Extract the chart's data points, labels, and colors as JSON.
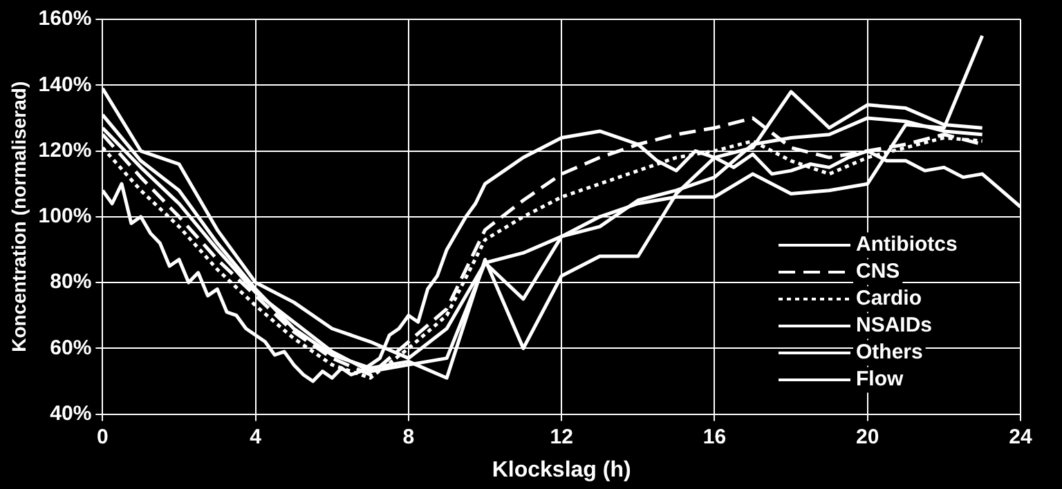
{
  "chart_data": {
    "type": "line",
    "xlabel": "Klockslag (h)",
    "ylabel": "Koncentration (normaliserad)",
    "x": [
      0,
      1,
      2,
      3,
      4,
      5,
      6,
      7,
      8,
      9,
      10,
      11,
      12,
      13,
      14,
      15,
      16,
      17,
      18,
      19,
      20,
      21,
      22,
      23
    ],
    "xlim": [
      0,
      24
    ],
    "xticks": [
      0,
      4,
      8,
      12,
      16,
      20,
      24
    ],
    "ylim": [
      40,
      160
    ],
    "yticks": [
      {
        "value": 40,
        "label": "40%"
      },
      {
        "value": 60,
        "label": "60%"
      },
      {
        "value": 80,
        "label": "80%"
      },
      {
        "value": 100,
        "label": "100%"
      },
      {
        "value": 120,
        "label": "120%"
      },
      {
        "value": 140,
        "label": "140%"
      },
      {
        "value": 160,
        "label": "160%"
      }
    ],
    "grid": true,
    "legend": "bottom right",
    "marker": "none",
    "series": [
      {
        "name": "Antibiotcs",
        "color": "#ffffff",
        "line_style": "solid",
        "values": [
          131,
          117,
          108,
          92,
          78,
          66,
          58,
          54,
          56,
          51,
          87,
          60,
          82,
          88,
          88,
          107,
          118,
          121,
          138,
          127,
          134,
          133,
          128,
          127
        ]
      },
      {
        "name": "CNS",
        "color": "#ffffff",
        "line_style": "dashed",
        "values": [
          125,
          112,
          100,
          87,
          76,
          65,
          57,
          52,
          62,
          72,
          96,
          105,
          113,
          118,
          122,
          125,
          127,
          130,
          121,
          118,
          120,
          122,
          125,
          122
        ]
      },
      {
        "name": "Cardio",
        "color": "#ffffff",
        "line_style": "dotted",
        "values": [
          121,
          108,
          97,
          84,
          73,
          63,
          55,
          51,
          60,
          70,
          93,
          100,
          106,
          110,
          114,
          118,
          120,
          123,
          117,
          113,
          118,
          121,
          124,
          123
        ]
      },
      {
        "name": "NSAIDs",
        "color": "#ffffff",
        "line_style": "solid",
        "values": [
          127,
          115,
          104,
          90,
          77,
          68,
          59,
          53,
          55,
          57,
          86,
          75,
          94,
          97,
          105,
          108,
          112,
          122,
          124,
          125,
          130,
          129,
          126,
          125
        ]
      },
      {
        "name": "Others",
        "color": "#ffffff",
        "line_style": "solid",
        "values": [
          139,
          120,
          116,
          96,
          80,
          74,
          66,
          62,
          57,
          66,
          86,
          89,
          94,
          100,
          104,
          106,
          106,
          113,
          107,
          108,
          110,
          128,
          127,
          155
        ]
      },
      {
        "name": "Flow",
        "color": "#ffffff",
        "line_style": "solid",
        "x": [
          0,
          0.25,
          0.5,
          0.75,
          1,
          1.25,
          1.5,
          1.75,
          2,
          2.25,
          2.5,
          2.75,
          3,
          3.25,
          3.5,
          3.75,
          4,
          4.25,
          4.5,
          4.75,
          5,
          5.25,
          5.5,
          5.75,
          6,
          6.25,
          6.5,
          6.75,
          7,
          7.25,
          7.5,
          7.75,
          8,
          8.25,
          8.5,
          8.75,
          9,
          9.25,
          9.5,
          9.75,
          10,
          10.5,
          11,
          11.5,
          12,
          12.5,
          13,
          13.5,
          14,
          14.5,
          15,
          15.5,
          16,
          16.5,
          17,
          17.5,
          18,
          18.5,
          19,
          19.5,
          20,
          20.5,
          21,
          21.5,
          22,
          22.5,
          23,
          23.5,
          24
        ],
        "values": [
          108,
          104,
          110,
          98,
          100,
          95,
          92,
          85,
          87,
          80,
          83,
          76,
          78,
          71,
          70,
          66,
          64,
          62,
          58,
          59,
          55,
          52,
          50,
          53,
          51,
          54,
          52,
          53,
          55,
          57,
          64,
          66,
          70,
          68,
          78,
          82,
          90,
          95,
          100,
          104,
          110,
          114,
          118,
          121,
          124,
          125,
          126,
          124,
          122,
          117,
          114,
          120,
          118,
          115,
          119,
          113,
          114,
          116,
          115,
          118,
          120,
          117,
          117,
          114,
          115,
          112,
          113,
          108,
          103
        ]
      }
    ]
  }
}
